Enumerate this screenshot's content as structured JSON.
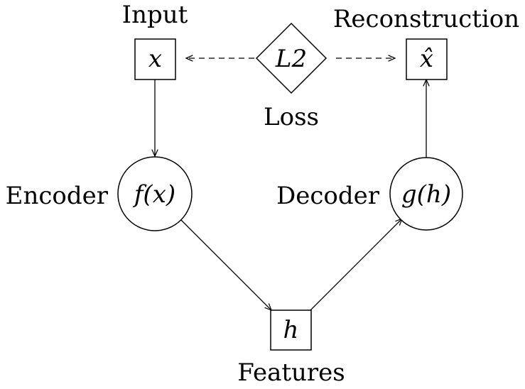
{
  "nodes": {
    "input": {
      "symbol": "x",
      "label": "Input"
    },
    "loss": {
      "symbol": "L2",
      "label": "Loss"
    },
    "reconstruction": {
      "symbol": "x̂",
      "label": "Reconstruction"
    },
    "encoder": {
      "symbol": "f(x)",
      "label": "Encoder"
    },
    "decoder": {
      "symbol": "g(h)",
      "label": "Decoder"
    },
    "features": {
      "symbol": "h",
      "label": "Features"
    }
  },
  "edges": [
    {
      "from": "input",
      "to": "encoder",
      "style": "solid"
    },
    {
      "from": "encoder",
      "to": "features",
      "style": "solid"
    },
    {
      "from": "features",
      "to": "decoder",
      "style": "solid"
    },
    {
      "from": "decoder",
      "to": "reconstruction",
      "style": "solid"
    },
    {
      "from": "loss",
      "to": "input",
      "style": "dashed"
    },
    {
      "from": "loss",
      "to": "reconstruction",
      "style": "dashed"
    }
  ]
}
